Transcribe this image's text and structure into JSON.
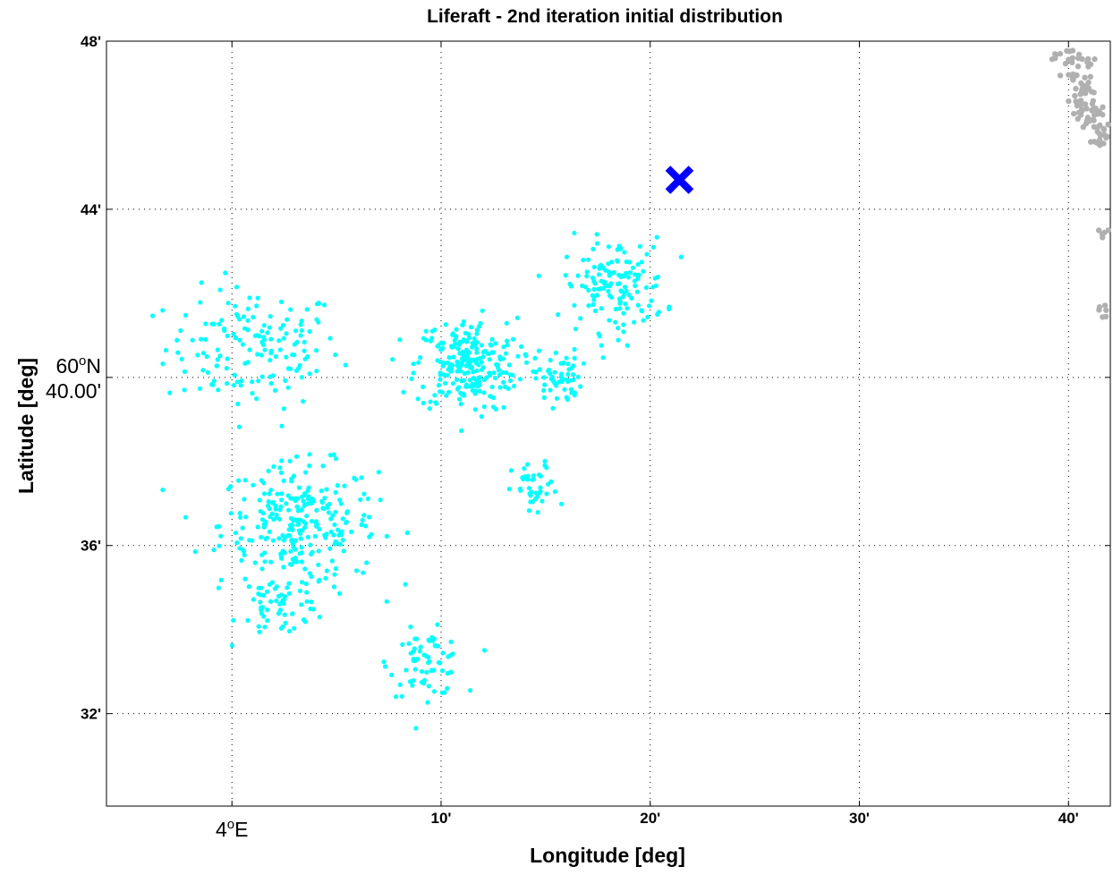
{
  "chart_data": {
    "type": "scatter",
    "title": "Liferaft - 2nd iteration initial distribution",
    "xlabel": "Longitude [deg]",
    "ylabel": "Latitude [deg]",
    "xlim_min": [
      3.9,
      4.7
    ],
    "ylim_min": [
      29.8,
      48.0
    ],
    "x_unit": "arc-minutes east of 4°E",
    "y_unit": "arc-minutes north of 60°N",
    "grid": true,
    "x_ticks": [
      {
        "value": 0,
        "label": "4°E",
        "major": true
      },
      {
        "value": 10,
        "label": "10'"
      },
      {
        "value": 20,
        "label": "20'"
      },
      {
        "value": 30,
        "label": "30'"
      },
      {
        "value": 40,
        "label": "40'"
      }
    ],
    "y_ticks": [
      {
        "value": 48,
        "label": "48'"
      },
      {
        "value": 44,
        "label": "44'"
      },
      {
        "value": 40,
        "label": "60°N\n40.00'",
        "major": true
      },
      {
        "value": 36,
        "label": "36'"
      },
      {
        "value": 32,
        "label": "32'"
      }
    ],
    "colors": {
      "particles": "#00ffff",
      "land": "#b0b0b0",
      "marker": "#0000ff",
      "grid": "#000000"
    },
    "series": [
      {
        "kind": "particle-clusters",
        "clusters": [
          {
            "cx": 1.0,
            "cy": 40.7,
            "sx": 3.8,
            "sy": 1.3,
            "n": 150
          },
          {
            "cx": 3.2,
            "cy": 36.5,
            "sx": 3.4,
            "sy": 1.3,
            "n": 270
          },
          {
            "cx": 2.5,
            "cy": 34.6,
            "sx": 2.0,
            "sy": 0.7,
            "n": 60
          },
          {
            "cx": 9.3,
            "cy": 33.2,
            "sx": 1.6,
            "sy": 0.7,
            "n": 70
          },
          {
            "cx": 11.2,
            "cy": 40.3,
            "sx": 2.2,
            "sy": 1.0,
            "n": 240
          },
          {
            "cx": 15.6,
            "cy": 40.0,
            "sx": 1.0,
            "sy": 0.6,
            "n": 60
          },
          {
            "cx": 14.5,
            "cy": 37.3,
            "sx": 1.0,
            "sy": 0.6,
            "n": 40
          },
          {
            "cx": 18.3,
            "cy": 42.2,
            "sx": 2.2,
            "sy": 1.0,
            "n": 140
          }
        ]
      },
      {
        "kind": "land",
        "points_approx": [
          [
            39.6,
            47.7
          ],
          [
            40.2,
            47.6
          ],
          [
            40.9,
            47.5
          ],
          [
            40.0,
            47.2
          ],
          [
            40.6,
            47.0
          ],
          [
            41.1,
            46.8
          ],
          [
            40.3,
            46.7
          ],
          [
            40.8,
            46.5
          ],
          [
            41.3,
            46.4
          ],
          [
            40.5,
            46.3
          ],
          [
            41.0,
            46.1
          ],
          [
            41.5,
            46.0
          ],
          [
            41.7,
            45.9
          ],
          [
            41.5,
            45.6
          ],
          [
            41.8,
            45.7
          ],
          [
            41.9,
            43.5
          ],
          [
            41.8,
            41.6
          ]
        ]
      }
    ],
    "marker": {
      "label": "",
      "x": 21.4,
      "y": 44.7,
      "symbol": "x"
    }
  }
}
